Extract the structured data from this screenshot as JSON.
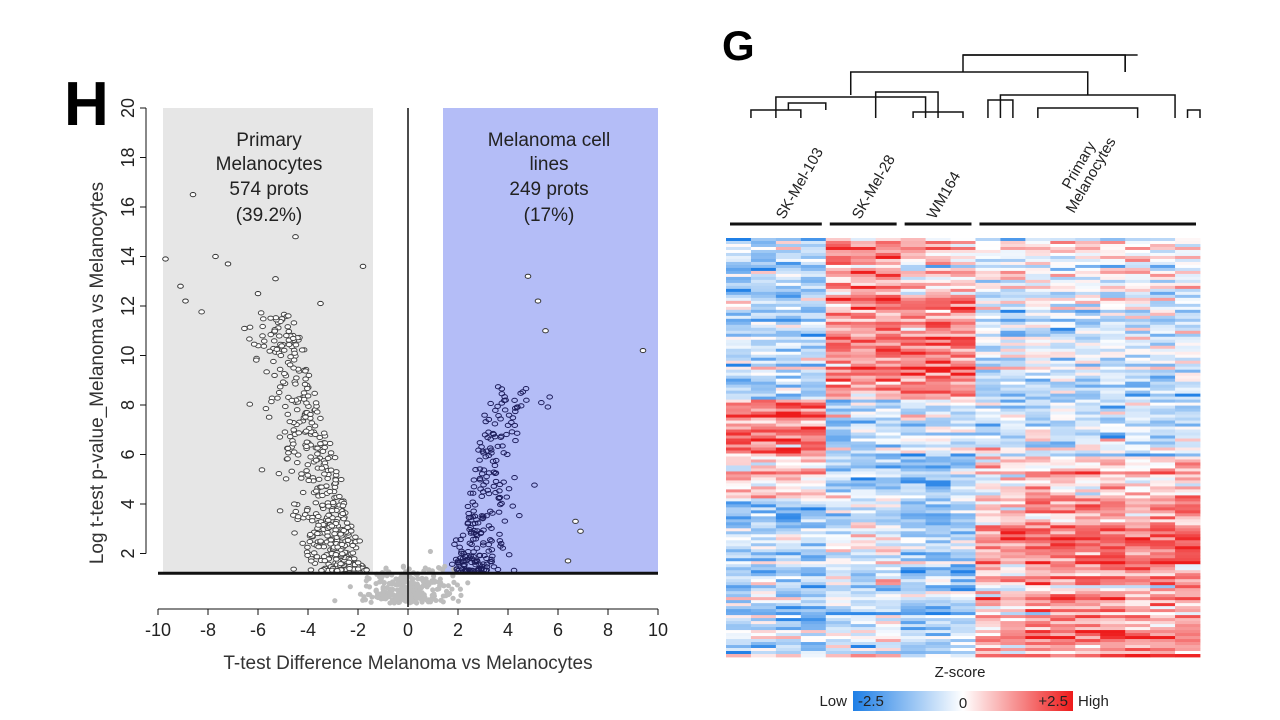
{
  "chart_data": [
    {
      "panel": "H",
      "type": "scatter",
      "xlabel": "T-test Difference Melanoma vs Melanocytes",
      "ylabel": "Log t-test p-value_Melanoma vs Melanocytes",
      "xlim": [
        -10,
        10
      ],
      "ylim": [
        0,
        20
      ],
      "x_ticks": [
        -10,
        -8,
        -6,
        -4,
        -2,
        0,
        2,
        4,
        6,
        8,
        10
      ],
      "y_ticks": [
        2,
        4,
        6,
        8,
        10,
        12,
        14,
        16,
        18,
        20
      ],
      "significance_threshold_y": 1.2,
      "fold_change_cutoffs": [
        -1.4,
        1.4
      ],
      "regions": [
        {
          "name": "Primary Melanocytes",
          "text_lines": [
            "Primary",
            "Melanocytes",
            "574 prots",
            "(39.2%)"
          ],
          "count": 574,
          "percent": 39.2,
          "x_range": [
            -9.8,
            -1.4
          ],
          "color": "#e6e6e6"
        },
        {
          "name": "Melanoma cell lines",
          "text_lines": [
            "Melanoma cell",
            "lines",
            "249 prots",
            "(17%)"
          ],
          "count": 249,
          "percent": 17,
          "x_range": [
            1.4,
            10
          ],
          "color": "#b4bdf7"
        }
      ],
      "labeled_outliers": [
        {
          "x": -9.7,
          "y": 13.9
        },
        {
          "x": -9.1,
          "y": 12.8
        },
        {
          "x": -8.9,
          "y": 12.2
        },
        {
          "x": -8.6,
          "y": 16.5
        },
        {
          "x": -7.7,
          "y": 14.0
        },
        {
          "x": -7.2,
          "y": 13.7
        },
        {
          "x": -6.0,
          "y": 12.5
        },
        {
          "x": -5.3,
          "y": 13.1
        },
        {
          "x": -4.5,
          "y": 14.8
        },
        {
          "x": -3.5,
          "y": 12.1
        },
        {
          "x": -1.8,
          "y": 13.6
        },
        {
          "x": 4.8,
          "y": 13.2
        },
        {
          "x": 5.5,
          "y": 11.0
        },
        {
          "x": 9.4,
          "y": 10.2
        },
        {
          "x": 6.7,
          "y": 3.3
        },
        {
          "x": 6.9,
          "y": 2.9
        },
        {
          "x": 6.4,
          "y": 1.7
        },
        {
          "x": 5.2,
          "y": 12.2
        }
      ]
    },
    {
      "panel": "G",
      "type": "heatmap",
      "column_groups": [
        {
          "label": "SK-Mel-103",
          "columns": 4
        },
        {
          "label": "SK-Mel-28",
          "columns": 3
        },
        {
          "label": "WM164",
          "columns": 3
        },
        {
          "label": "Primary Melanocytes",
          "label_lines": [
            "Primary",
            "Melanocytes"
          ],
          "columns": 9
        }
      ],
      "colorbar": {
        "title": "Z-score",
        "low_label": "Low",
        "high_label": "High",
        "min_label": "-2.5",
        "mid_label": "0",
        "max_label": "+2.5",
        "min": -2.5,
        "max": 2.5,
        "low_color": "#1f7fe6",
        "mid_color": "#ffffff",
        "high_color": "#ee1b1b"
      },
      "dendrogram": true
    }
  ]
}
